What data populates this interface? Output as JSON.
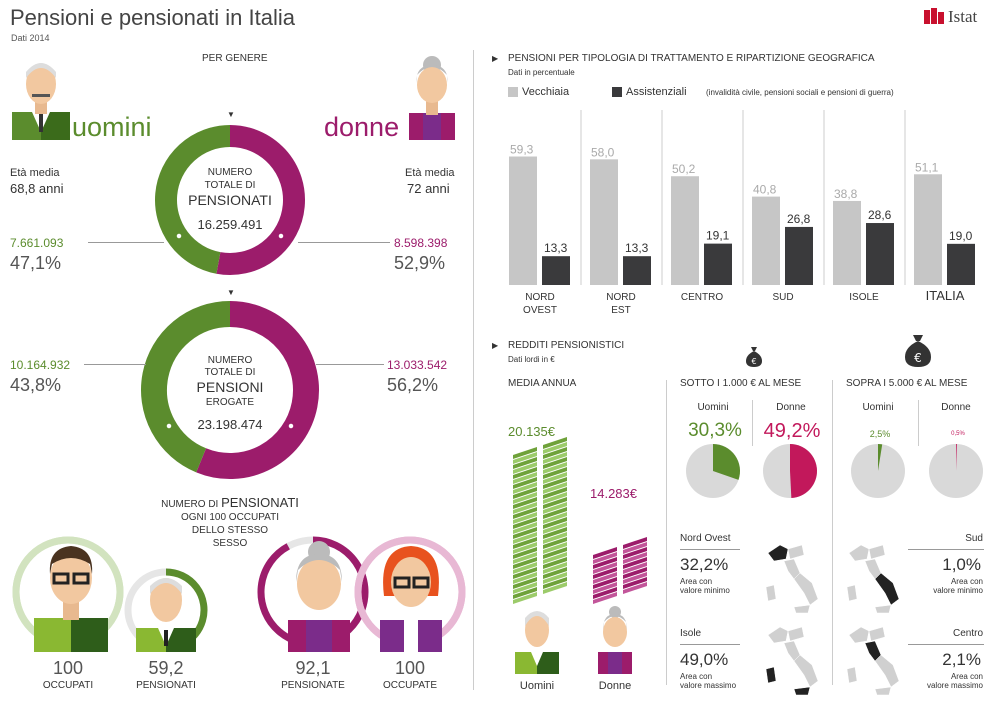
{
  "header": {
    "title": "Pensioni e pensionati in Italia",
    "subtitle": "Dati 2014",
    "logo_text": "Istat"
  },
  "colors": {
    "green": "#5b8c2d",
    "purple": "#9c1c6b",
    "gray_bar": "#c6c6c6",
    "dark_bar": "#3a3a3c",
    "pie_bg": "#d9d9d9",
    "pink": "#c2185b"
  },
  "left": {
    "section_title": "PER GENERE",
    "men_label": "uomini",
    "women_label": "donne",
    "men_age_label": "Età media",
    "men_age_value": "68,8 anni",
    "women_age_label": "Età media",
    "women_age_value": "72 anni",
    "donut1": {
      "line1": "NUMERO",
      "line2": "TOTALE DI",
      "line3": "PENSIONATI",
      "value": "16.259.491",
      "men_share": 0.471,
      "men_count": "7.661.093",
      "men_pct": "47,1%",
      "women_count": "8.598.398",
      "women_pct": "52,9%"
    },
    "donut2": {
      "line1": "NUMERO",
      "line2": "TOTALE DI",
      "line3": "PENSIONI",
      "line4": "EROGATE",
      "value": "23.198.474",
      "men_share": 0.438,
      "men_count": "10.164.932",
      "men_pct": "43,8%",
      "women_count": "13.033.542",
      "women_pct": "56,2%"
    },
    "ratio_title_pre": "NUMERO DI",
    "ratio_title_big": "PENSIONATI",
    "ratio_title_l2": "OGNI 100 OCCUPATI",
    "ratio_title_l3": "DELLO STESSO",
    "ratio_title_l4": "SESSO",
    "ratio": [
      {
        "value": "100",
        "label": "OCCUPATI",
        "level": 1.0
      },
      {
        "value": "59,2",
        "label": "PENSIONATI",
        "level": 0.592
      },
      {
        "value": "92,1",
        "label": "PENSIONATE",
        "level": 0.921
      },
      {
        "value": "100",
        "label": "OCCUPATE",
        "level": 1.0
      }
    ]
  },
  "chart_data": [
    {
      "type": "bar",
      "title": "PENSIONI PER TIPOLOGIA DI TRATTAMENTO E RIPARTIZIONE GEOGRAFICA",
      "subtitle": "Dati in percentuale",
      "categories": [
        "NORD OVEST",
        "NORD EST",
        "CENTRO",
        "SUD",
        "ISOLE",
        "ITALIA"
      ],
      "series": [
        {
          "name": "Vecchiaia",
          "values": [
            59.3,
            58.0,
            50.2,
            40.8,
            38.8,
            51.1
          ]
        },
        {
          "name": "Assistenziali",
          "values": [
            13.3,
            13.3,
            19.1,
            26.8,
            28.6,
            19.0
          ]
        }
      ],
      "value_labels": {
        "Vecchiaia": [
          "59,3",
          "58,0",
          "50,2",
          "40,8",
          "38,8",
          "51,1"
        ],
        "Assistenziali": [
          "13,3",
          "13,3",
          "19,1",
          "26,8",
          "28,6",
          "19,0"
        ]
      },
      "legend_note": "(invalidità civile, pensioni sociali e pensioni di guerra)",
      "legend_placement": "top",
      "ylim": [
        0,
        70
      ]
    },
    {
      "type": "pie",
      "title": "SOTTO I 1.000 € AL MESE",
      "slices": [
        {
          "name": "Uomini",
          "value": 30.3,
          "label": "30,3%"
        },
        {
          "name": "Donne",
          "value": 49.2,
          "label": "49,2%"
        }
      ]
    },
    {
      "type": "pie",
      "title": "SOPRA I 5.000 € AL MESE",
      "slices": [
        {
          "name": "Uomini",
          "value": 2.5,
          "label": "2,5%"
        },
        {
          "name": "Donne",
          "value": 0.5,
          "label": "0,5%"
        }
      ]
    }
  ],
  "right": {
    "chart_title": "PENSIONI PER TIPOLOGIA DI TRATTAMENTO E RIPARTIZIONE GEOGRAFICA",
    "chart_subtitle": "Dati in percentuale",
    "legend_vecchiaia": "Vecchiaia",
    "legend_assistenziali": "Assistenziali",
    "legend_note": "(invalidità civile, pensioni sociali e pensioni di guerra)",
    "cat_labels": [
      [
        "NORD",
        "OVEST"
      ],
      [
        "NORD",
        "EST"
      ],
      [
        "CENTRO",
        ""
      ],
      [
        "SUD",
        ""
      ],
      [
        "ISOLE",
        ""
      ],
      [
        "ITALIA",
        ""
      ]
    ],
    "redditi_title": "REDDITI PENSIONISTICI",
    "redditi_subtitle": "Dati lordi in €",
    "media_label": "MEDIA ANNUA",
    "men_income": "20.135€",
    "women_income": "14.283€",
    "men_income_value": 20135,
    "women_income_value": 14283,
    "men_caption": "Uomini",
    "women_caption": "Donne",
    "under_title": "SOTTO I 1.000 € AL MESE",
    "over_title": "SOPRA I 5.000 € AL MESE",
    "uomini": "Uomini",
    "donne": "Donne",
    "under_men": "30,3%",
    "under_women": "49,2%",
    "over_men": "2,5%",
    "over_women": "0,5%",
    "under_men_v": 0.303,
    "under_women_v": 0.492,
    "over_men_v": 0.025,
    "over_women_v": 0.005,
    "mini_area1": "Nord Ovest",
    "mini_pct1": "32,2%",
    "mini_desc1a": "Area con",
    "mini_desc1b": "valore minimo",
    "mini_area2": "Isole",
    "mini_pct2": "49,0%",
    "mini_desc2a": "Area con",
    "mini_desc2b": "valore massimo",
    "mini_area3": "Sud",
    "mini_pct3": "1,0%",
    "mini_desc3a": "Area con",
    "mini_desc3b": "valore minimo",
    "mini_area4": "Centro",
    "mini_pct4": "2,1%",
    "mini_desc4a": "Area con",
    "mini_desc4b": "valore massimo",
    "euro_icon": "money-bag-euro-icon",
    "map_icon": "italy-map-icon"
  }
}
